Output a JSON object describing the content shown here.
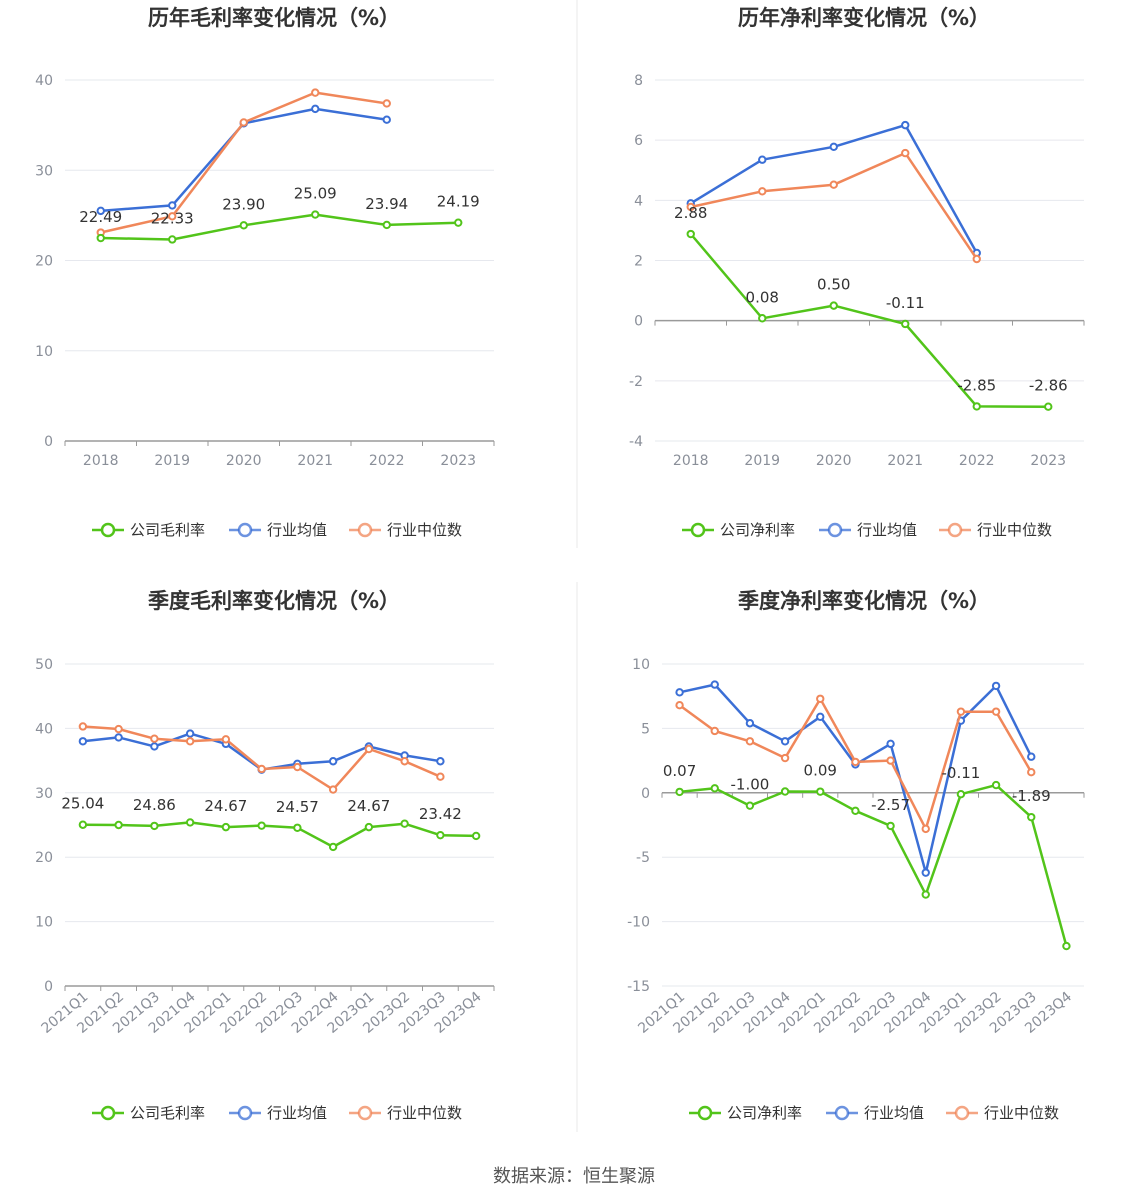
{
  "source": "数据来源：恒生聚源",
  "legend_labels": {
    "gross": [
      "公司毛利率",
      "行业均值",
      "行业中位数"
    ],
    "net": [
      "公司净利率",
      "行业均值",
      "行业中位数"
    ]
  },
  "colors": {
    "company": "#52c41a",
    "avg": "#3b6fd6",
    "median": "#f0875a",
    "grid": "#e6e8ee",
    "axis": "#9a9a9a"
  },
  "chart_data": [
    {
      "type": "line",
      "title": "历年毛利率变化情况（%）",
      "categories": [
        "2018",
        "2019",
        "2020",
        "2021",
        "2022",
        "2023"
      ],
      "ylim": [
        0,
        40
      ],
      "yticks": [
        0,
        10,
        20,
        30,
        40
      ],
      "series": [
        {
          "name": "公司毛利率",
          "values": [
            22.49,
            22.33,
            23.9,
            25.09,
            23.94,
            24.19
          ],
          "labels": [
            "22.49",
            "22.33",
            "23.90",
            "25.09",
            "23.94",
            "24.19"
          ]
        },
        {
          "name": "行业均值",
          "values": [
            25.5,
            26.1,
            35.2,
            36.8,
            35.6,
            null
          ]
        },
        {
          "name": "行业中位数",
          "values": [
            23.1,
            24.9,
            35.3,
            38.6,
            37.4,
            null
          ]
        }
      ]
    },
    {
      "type": "line",
      "title": "历年净利率变化情况（%）",
      "categories": [
        "2018",
        "2019",
        "2020",
        "2021",
        "2022",
        "2023"
      ],
      "ylim": [
        -4,
        8
      ],
      "yticks": [
        -4,
        -2,
        0,
        2,
        4,
        6,
        8
      ],
      "series": [
        {
          "name": "公司净利率",
          "values": [
            2.88,
            0.08,
            0.5,
            -0.11,
            -2.85,
            -2.86
          ],
          "labels": [
            "2.88",
            "0.08",
            "0.50",
            "-0.11",
            "-2.85",
            "-2.86"
          ]
        },
        {
          "name": "行业均值",
          "values": [
            3.9,
            5.35,
            5.78,
            6.5,
            2.25,
            null
          ]
        },
        {
          "name": "行业中位数",
          "values": [
            3.78,
            4.3,
            4.52,
            5.57,
            2.05,
            null
          ]
        }
      ]
    },
    {
      "type": "line",
      "title": "季度毛利率变化情况（%）",
      "categories": [
        "2021Q1",
        "2021Q2",
        "2021Q3",
        "2021Q4",
        "2022Q1",
        "2022Q2",
        "2022Q3",
        "2022Q4",
        "2023Q1",
        "2023Q2",
        "2023Q3",
        "2023Q4"
      ],
      "ylim": [
        0,
        50
      ],
      "yticks": [
        0,
        10,
        20,
        30,
        40,
        50
      ],
      "series": [
        {
          "name": "公司毛利率",
          "values": [
            25.04,
            25.0,
            24.86,
            25.4,
            24.67,
            24.9,
            24.57,
            21.6,
            24.67,
            25.2,
            23.42,
            23.3
          ],
          "labels": [
            "25.04",
            "",
            "24.86",
            "",
            "24.67",
            "",
            "24.57",
            "",
            "24.67",
            "",
            "23.42",
            ""
          ]
        },
        {
          "name": "行业均值",
          "values": [
            38.0,
            38.6,
            37.2,
            39.2,
            37.6,
            33.6,
            34.5,
            34.9,
            37.2,
            35.8,
            34.9,
            null
          ]
        },
        {
          "name": "行业中位数",
          "values": [
            40.3,
            39.9,
            38.4,
            38.0,
            38.3,
            33.7,
            34.0,
            30.5,
            36.8,
            34.9,
            32.5,
            null
          ]
        }
      ]
    },
    {
      "type": "line",
      "title": "季度净利率变化情况（%）",
      "categories": [
        "2021Q1",
        "2021Q2",
        "2021Q3",
        "2021Q4",
        "2022Q1",
        "2022Q2",
        "2022Q3",
        "2022Q4",
        "2023Q1",
        "2023Q2",
        "2023Q3",
        "2023Q4"
      ],
      "ylim": [
        -15,
        10
      ],
      "yticks": [
        -15,
        -10,
        -5,
        0,
        5,
        10
      ],
      "series": [
        {
          "name": "公司净利率",
          "values": [
            0.07,
            0.35,
            -1.0,
            0.1,
            0.09,
            -1.4,
            -2.57,
            -7.9,
            -0.11,
            0.6,
            -1.89,
            -11.9
          ],
          "labels": [
            "0.07",
            "",
            "-1.00",
            "",
            "0.09",
            "",
            "-2.57",
            "",
            "-0.11",
            "",
            "-1.89",
            ""
          ]
        },
        {
          "name": "行业均值",
          "values": [
            7.8,
            8.4,
            5.4,
            4.0,
            5.9,
            2.2,
            3.8,
            -6.2,
            5.6,
            8.3,
            2.8,
            null
          ]
        },
        {
          "name": "行业中位数",
          "values": [
            6.8,
            4.8,
            4.0,
            2.7,
            7.3,
            2.4,
            2.5,
            -2.8,
            6.3,
            6.3,
            1.6,
            null
          ]
        }
      ]
    }
  ]
}
